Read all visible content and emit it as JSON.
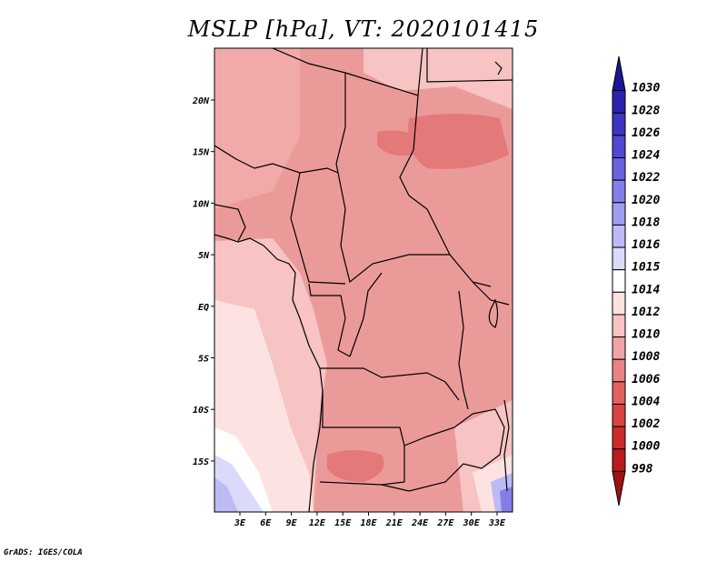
{
  "title": "MSLP [hPa], VT: 2020101415",
  "credit": "GrADS: IGES/COLA",
  "map": {
    "variable": "MSLP",
    "units": "hPa",
    "valid_time": "2020101415",
    "lat_labels": [
      "20N",
      "15N",
      "10N",
      "5N",
      "EQ",
      "5S",
      "10S",
      "15S"
    ],
    "lon_labels": [
      "3E",
      "6E",
      "9E",
      "12E",
      "15E",
      "18E",
      "21E",
      "24E",
      "27E",
      "30E",
      "33E"
    ],
    "colorbar_levels": [
      "1030",
      "1028",
      "1026",
      "1024",
      "1022",
      "1020",
      "1018",
      "1016",
      "1015",
      "1014",
      "1012",
      "1010",
      "1008",
      "1006",
      "1004",
      "1002",
      "1000",
      "998"
    ],
    "colorbar_colors": [
      "#1e1496",
      "#2b23ad",
      "#3c35c2",
      "#5049d2",
      "#6862de",
      "#837ee8",
      "#a09cf0",
      "#bdbaf6",
      "#dcdafa",
      "#ffffff",
      "#fde2e2",
      "#f7c3c3",
      "#f2a3a3",
      "#ea8383",
      "#e26262",
      "#d84343",
      "#cc2b2b",
      "#b81c1c",
      "#a01212"
    ]
  },
  "chart_data": {
    "type": "heatmap",
    "title": "MSLP [hPa], VT: 2020101415",
    "variable": "Mean sea level pressure",
    "units": "hPa",
    "x_ticks": [
      "3E",
      "6E",
      "9E",
      "12E",
      "15E",
      "18E",
      "21E",
      "24E",
      "27E",
      "30E",
      "33E"
    ],
    "y_ticks": [
      "20N",
      "15N",
      "10N",
      "5N",
      "EQ",
      "5S",
      "10S",
      "15S"
    ],
    "color_levels": [
      998,
      1000,
      1002,
      1004,
      1006,
      1008,
      1010,
      1012,
      1014,
      1015,
      1016,
      1018,
      1020,
      1022,
      1024,
      1026,
      1028,
      1030
    ],
    "dominant_range_hPa": [
      1006,
      1012
    ]
  }
}
